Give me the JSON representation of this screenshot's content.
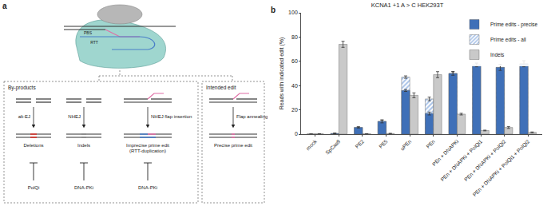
{
  "diagram": {
    "panel_label": "a",
    "editor_labels": [
      "PBS",
      "RTT"
    ],
    "byproducts": {
      "title": "By-products",
      "columns": [
        {
          "pathway": "alt-EJ",
          "outcome": [
            "Deletions"
          ],
          "inhibitor": "PolQi"
        },
        {
          "pathway": "NHEJ",
          "outcome": [
            "Indels"
          ],
          "inhibitor": "DNA-PKi"
        },
        {
          "pathway": "NHEJ flap insertion",
          "outcome": [
            "Imprecise prime edit",
            "(RTT-duplication)"
          ],
          "inhibitor": "DNA-PKi"
        }
      ]
    },
    "intended": {
      "title": "Intended edit",
      "pathway": "Flap annealing",
      "outcome": [
        "Precise prime edit"
      ]
    }
  },
  "chart_data": {
    "type": "bar",
    "panel_label": "b",
    "title": "KCNA1 +1 A > C HEK293T",
    "y_label": "Reads with indicated edit (%)",
    "categories": [
      "mock",
      "SpCas9",
      "PE2",
      "PE5",
      "uPEn",
      "PEn",
      "PEn + DNAPKi",
      "PEn + DNAPKi + PolQi1",
      "PEn + DNAPKi + PolQi2",
      "PEn + DNAPKi + PolQi1 + PolQi2"
    ],
    "series": [
      {
        "name": "Prime edits - precise",
        "color": "#3f70b8",
        "values": [
          0,
          0.5,
          5.5,
          10.5,
          36,
          17,
          50,
          57,
          55,
          58
        ],
        "errors": [
          0,
          0.3,
          0.5,
          1.2,
          0.8,
          1.2,
          1.5,
          1.5,
          2.5,
          2.5
        ]
      },
      {
        "name": "Prime edits - all",
        "color": "#a9c3e8",
        "marker": "hatched",
        "values": [
          0,
          0.5,
          5.5,
          10.5,
          47,
          29,
          50,
          57,
          55,
          58
        ],
        "errors": [
          0,
          0.3,
          0.5,
          1.2,
          1,
          1.5,
          1.5,
          1.5,
          2.5,
          2.5
        ]
      },
      {
        "name": "Indels",
        "color": "#c9c9c9",
        "values": [
          0.3,
          74,
          0.3,
          0.5,
          32,
          49,
          16.5,
          3,
          5.5,
          1.5
        ],
        "errors": [
          0.1,
          2.5,
          0.1,
          0.2,
          2,
          2.5,
          0.7,
          0.3,
          0.8,
          0.3
        ]
      }
    ],
    "ylim": [
      0,
      100
    ],
    "yticks": [
      0,
      20,
      40,
      60,
      80,
      100
    ],
    "legend": "upper right",
    "grid": false
  }
}
